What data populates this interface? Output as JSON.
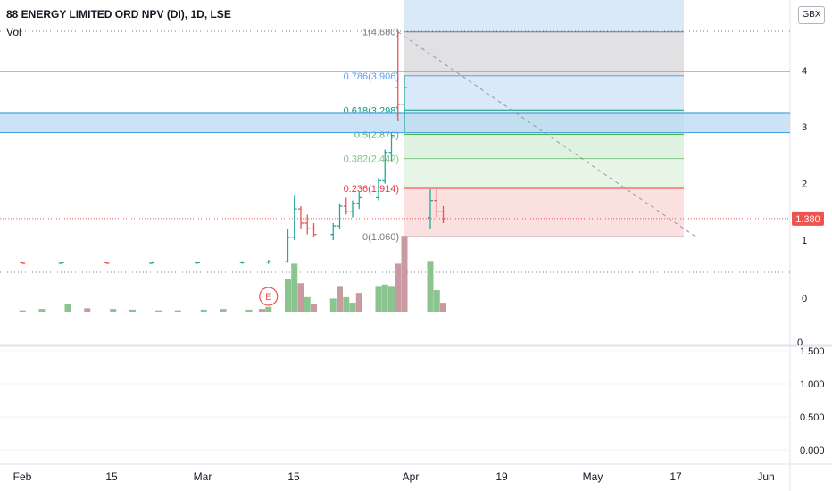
{
  "header": {
    "title": "88 ENERGY LIMITED ORD NPV (DI), 1D, LSE",
    "vol_label": "Vol",
    "currency": "GBX"
  },
  "chart_data": [
    {
      "type": "candlestick",
      "title": "88 ENERGY LIMITED ORD NPV (DI), 1D, LSE",
      "price_axis": {
        "ticks": [
          "1",
          "2",
          "3",
          "4"
        ],
        "lower_ticks": [
          "0"
        ]
      },
      "last_price": "1.380",
      "x_ticks": [
        "Feb",
        "15",
        "Mar",
        "15",
        "Apr",
        "19",
        "May",
        "17",
        "Jun"
      ],
      "events": [
        {
          "label": "E",
          "date": "Mar 12"
        }
      ],
      "fib_levels": [
        {
          "label": "1(4.680)",
          "value": 4.68,
          "zone_color": "#dcdcdf",
          "line_color": "#787b86",
          "text_color": "#787b86"
        },
        {
          "label": "0.786(3.906)",
          "value": 3.906,
          "zone_color": "#d2e5f6",
          "line_color": "#5b9cf6",
          "text_color": "#5b9cf6"
        },
        {
          "label": "0.618(3.298)",
          "value": 3.298,
          "zone_color": "#cfe8df",
          "line_color": "#089981",
          "text_color": "#089981"
        },
        {
          "label": "0.5(2.870)",
          "value": 2.87,
          "zone_color": "#d8f0d9",
          "line_color": "#4caf50",
          "text_color": "#4caf50"
        },
        {
          "label": "0.382(2.442)",
          "value": 2.442,
          "zone_color": "#e3f3e3",
          "line_color": "#81c784",
          "text_color": "#81c784"
        },
        {
          "label": "0.236(1.914)",
          "value": 1.914,
          "zone_color": "#fadada",
          "line_color": "#f23645",
          "text_color": "#f23645"
        },
        {
          "label": "0(1.060)",
          "value": 1.06,
          "zone_color": null,
          "line_color": "#787b86",
          "text_color": "#787b86"
        }
      ],
      "horizontal_lines": [
        3.98,
        3.24,
        2.9
      ],
      "highlight_band": {
        "from": 2.9,
        "to": 3.24
      },
      "trend_line": {
        "from": {
          "date": "Apr 1",
          "price": 4.68
        },
        "to": {
          "date": "May 17",
          "price": 1.06
        }
      },
      "volume_series": [
        {
          "date": "Jan 25",
          "value": 3,
          "dir": "up"
        },
        {
          "date": "Jan 29",
          "value": 4,
          "dir": "up"
        },
        {
          "date": "Feb 2",
          "value": 3,
          "dir": "down"
        },
        {
          "date": "Feb 5",
          "value": 5,
          "dir": "up"
        },
        {
          "date": "Feb 9",
          "value": 12,
          "dir": "up"
        },
        {
          "date": "Feb 12",
          "value": 6,
          "dir": "down"
        },
        {
          "date": "Feb 16",
          "value": 5,
          "dir": "up"
        },
        {
          "date": "Feb 19",
          "value": 4,
          "dir": "up"
        },
        {
          "date": "Feb 23",
          "value": 3,
          "dir": "up"
        },
        {
          "date": "Feb 26",
          "value": 3,
          "dir": "down"
        },
        {
          "date": "Mar 2",
          "value": 4,
          "dir": "up"
        },
        {
          "date": "Mar 5",
          "value": 5,
          "dir": "up"
        },
        {
          "date": "Mar 9",
          "value": 4,
          "dir": "up"
        },
        {
          "date": "Mar 11",
          "value": 5,
          "dir": "down"
        },
        {
          "date": "Mar 12",
          "value": 8,
          "dir": "up"
        },
        {
          "date": "Mar 15",
          "value": 48,
          "dir": "up"
        },
        {
          "date": "Mar 16",
          "value": 70,
          "dir": "up"
        },
        {
          "date": "Mar 17",
          "value": 42,
          "dir": "down"
        },
        {
          "date": "Mar 18",
          "value": 22,
          "dir": "up"
        },
        {
          "date": "Mar 19",
          "value": 12,
          "dir": "down"
        },
        {
          "date": "Mar 22",
          "value": 20,
          "dir": "up"
        },
        {
          "date": "Mar 23",
          "value": 38,
          "dir": "down"
        },
        {
          "date": "Mar 24",
          "value": 22,
          "dir": "up"
        },
        {
          "date": "Mar 25",
          "value": 14,
          "dir": "up"
        },
        {
          "date": "Mar 26",
          "value": 28,
          "dir": "down"
        },
        {
          "date": "Mar 29",
          "value": 38,
          "dir": "up"
        },
        {
          "date": "Mar 30",
          "value": 40,
          "dir": "up"
        },
        {
          "date": "Mar 31",
          "value": 38,
          "dir": "up"
        },
        {
          "date": "Apr 1",
          "value": 70,
          "dir": "down"
        },
        {
          "date": "Apr 2",
          "value": 110,
          "dir": "down"
        },
        {
          "date": "Apr 6",
          "value": 74,
          "dir": "up"
        },
        {
          "date": "Apr 7",
          "value": 32,
          "dir": "up"
        },
        {
          "date": "Apr 8",
          "value": 14,
          "dir": "down"
        }
      ]
    },
    {
      "type": "line",
      "y_ticks": [
        "1.500",
        "1.000",
        "0.500",
        "0.000"
      ],
      "top_label": "0"
    }
  ]
}
